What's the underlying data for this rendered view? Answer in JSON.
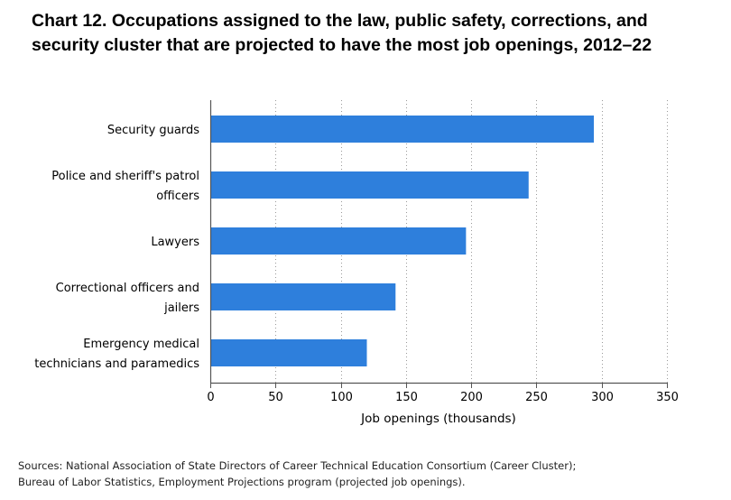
{
  "title_lines": [
    "Chart 12. Occupations assigned to the law, public safety, corrections, and",
    "security cluster that are projected to have the most job openings, 2012–22"
  ],
  "source_lines": [
    "Sources: National Association of State Directors of Career Technical Education Consortium (Career Cluster);",
    "Bureau of Labor Statistics, Employment Projections program (projected job openings)."
  ],
  "chart_data": {
    "type": "bar",
    "orientation": "horizontal",
    "title": "Chart 12. Occupations assigned to the law, public safety, corrections, and security cluster that are projected to have the most job openings, 2012–22",
    "categories": [
      [
        "Security guards"
      ],
      [
        "Police and sheriff's patrol",
        "officers"
      ],
      [
        "Lawyers"
      ],
      [
        "Correctional officers and",
        "jailers"
      ],
      [
        "Emergency medical",
        "technicians and paramedics"
      ]
    ],
    "values": [
      294,
      244,
      196,
      142,
      120
    ],
    "xlabel": "Job openings (thousands)",
    "ylabel": "",
    "xlim": [
      0,
      350
    ],
    "xticks": [
      0,
      50,
      100,
      150,
      200,
      250,
      300,
      350
    ],
    "grid": "vertical dotted",
    "colors": {
      "bar": "#2e7fdc",
      "axis": "#555555",
      "grid": "#9a9a9a"
    }
  }
}
